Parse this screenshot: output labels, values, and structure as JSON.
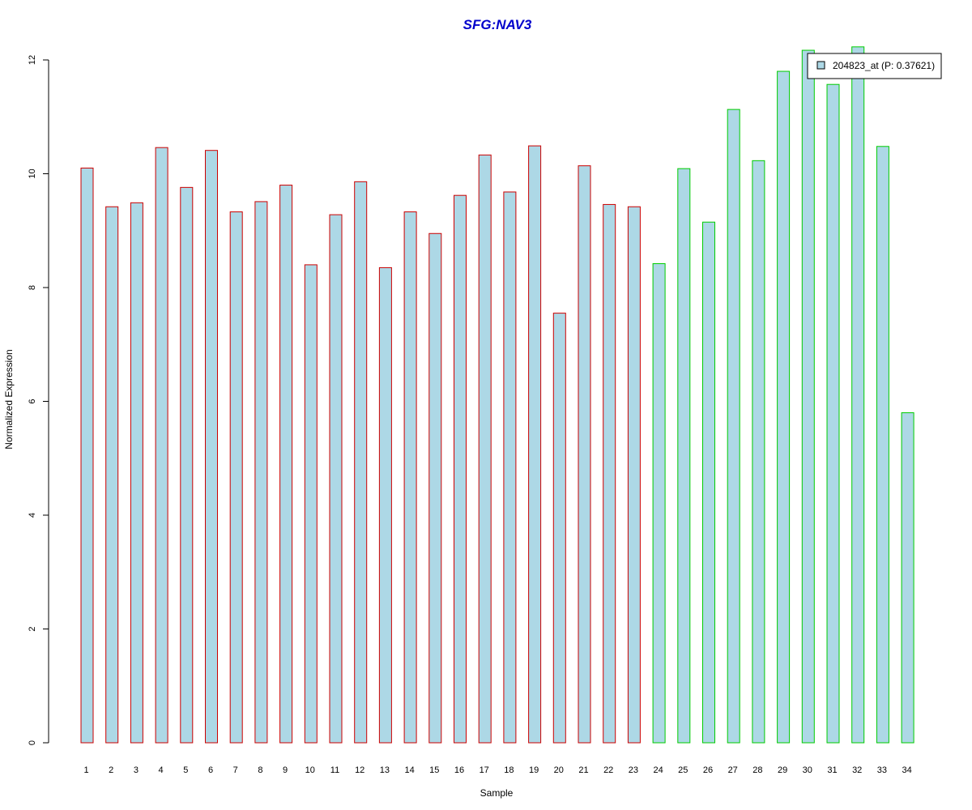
{
  "chart_data": {
    "type": "bar",
    "title": "SFG:NAV3",
    "xlabel": "Sample",
    "ylabel": "Normalized Expression",
    "ylim": [
      0,
      12
    ],
    "yticks": [
      "0",
      "2",
      "4",
      "6",
      "8",
      "10",
      "12"
    ],
    "grid": false,
    "legend": {
      "label": "204823_at (P: 0.37621)",
      "placement": "top-right"
    },
    "categories": [
      "1",
      "2",
      "3",
      "4",
      "5",
      "6",
      "7",
      "8",
      "9",
      "10",
      "11",
      "12",
      "13",
      "14",
      "15",
      "16",
      "17",
      "18",
      "19",
      "20",
      "21",
      "22",
      "23",
      "24",
      "25",
      "26",
      "27",
      "28",
      "29",
      "30",
      "31",
      "32",
      "33",
      "34"
    ],
    "values": [
      10.1,
      9.42,
      9.49,
      10.46,
      9.76,
      10.41,
      9.33,
      9.51,
      9.8,
      8.4,
      9.28,
      9.86,
      8.35,
      9.33,
      8.95,
      9.62,
      10.33,
      9.68,
      10.49,
      7.55,
      10.14,
      9.46,
      9.42,
      8.42,
      10.09,
      9.15,
      11.13,
      10.23,
      11.8,
      12.17,
      11.57,
      12.23,
      10.48,
      5.8
    ],
    "groups": [
      "1",
      "1",
      "1",
      "1",
      "1",
      "1",
      "1",
      "1",
      "1",
      "1",
      "1",
      "1",
      "1",
      "1",
      "1",
      "1",
      "1",
      "1",
      "1",
      "1",
      "1",
      "1",
      "1",
      "2",
      "2",
      "2",
      "2",
      "2",
      "2",
      "2",
      "2",
      "2",
      "2",
      "2"
    ]
  },
  "colors": {
    "title": "#0000cc",
    "bar_fill": "#add8e6",
    "group_1_border": "#cc0000",
    "group_2_border": "#00cc00",
    "axis": "#000000"
  }
}
